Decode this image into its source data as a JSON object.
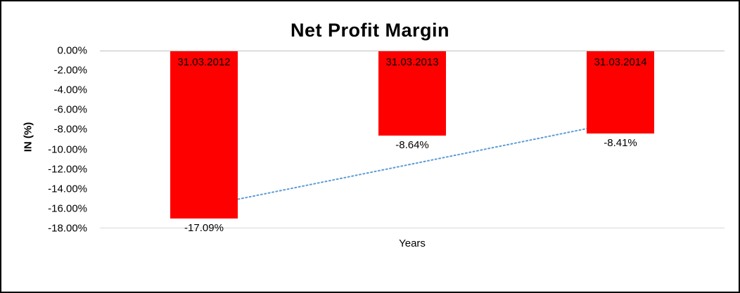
{
  "chart_data": {
    "type": "bar",
    "title": "Net Profit Margin",
    "xlabel": "Years",
    "ylabel": "IN (%)",
    "categories": [
      "31.03.2012",
      "31.03.2013",
      "31.03.2014"
    ],
    "values": [
      -17.09,
      -8.64,
      -8.41
    ],
    "value_labels": [
      "-17.09%",
      "-8.64%",
      "-8.41%"
    ],
    "ylim": [
      -18,
      0
    ],
    "ytick_step": 2,
    "yticks": [
      "0.00%",
      "-2.00%",
      "-4.00%",
      "-6.00%",
      "-8.00%",
      "-10.00%",
      "-12.00%",
      "-14.00%",
      "-16.00%",
      "-18.00%"
    ],
    "bar_color": "#FF0000",
    "grid": "baseline-only",
    "legend": "none",
    "trendline": {
      "type": "linear",
      "style": "dotted",
      "color": "#5B9BD5",
      "start_value": -15.8,
      "end_value": -7.2
    }
  }
}
